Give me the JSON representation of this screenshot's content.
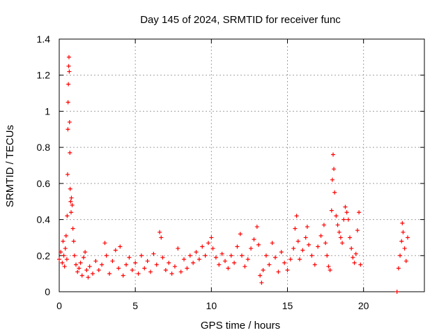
{
  "chart_data": {
    "type": "scatter",
    "title": "Day 145 of 2024, SRMTID for receiver func",
    "xlabel": "GPS time / hours",
    "ylabel": "SRMTID / TECUs",
    "xlim": [
      0,
      24
    ],
    "ylim": [
      0,
      1.4
    ],
    "xticks": [
      0,
      5,
      10,
      15,
      20
    ],
    "xtick_labels": [
      "0",
      "5",
      "10",
      "15",
      "20"
    ],
    "yticks": [
      0,
      0.2,
      0.4,
      0.6,
      0.8,
      1,
      1.2,
      1.4
    ],
    "ytick_labels": [
      "0",
      "0.2",
      "0.4",
      "0.6",
      "0.8",
      "1",
      "1.2",
      "1.4"
    ],
    "grid": true,
    "marker": "+",
    "color": "#ff0000",
    "series": [
      {
        "name": "SRMTID",
        "points": [
          [
            0.0,
            0.18
          ],
          [
            0.1,
            0.22
          ],
          [
            0.2,
            0.16
          ],
          [
            0.25,
            0.28
          ],
          [
            0.3,
            0.2
          ],
          [
            0.35,
            0.14
          ],
          [
            0.4,
            0.24
          ],
          [
            0.45,
            0.31
          ],
          [
            0.5,
            0.18
          ],
          [
            0.52,
            0.42
          ],
          [
            0.55,
            0.65
          ],
          [
            0.57,
            0.9
          ],
          [
            0.58,
            1.05
          ],
          [
            0.6,
            1.15
          ],
          [
            0.62,
            1.25
          ],
          [
            0.64,
            1.3
          ],
          [
            0.66,
            1.22
          ],
          [
            0.68,
            0.94
          ],
          [
            0.7,
            0.77
          ],
          [
            0.72,
            0.57
          ],
          [
            0.75,
            0.5
          ],
          [
            0.78,
            0.44
          ],
          [
            0.8,
            0.52
          ],
          [
            0.85,
            0.48
          ],
          [
            0.9,
            0.35
          ],
          [
            0.95,
            0.28
          ],
          [
            1.0,
            0.2
          ],
          [
            1.1,
            0.15
          ],
          [
            1.2,
            0.11
          ],
          [
            1.3,
            0.13
          ],
          [
            1.4,
            0.16
          ],
          [
            1.5,
            0.09
          ],
          [
            1.6,
            0.19
          ],
          [
            1.7,
            0.22
          ],
          [
            1.8,
            0.12
          ],
          [
            1.9,
            0.08
          ],
          [
            2.0,
            0.14
          ],
          [
            2.2,
            0.1
          ],
          [
            2.4,
            0.17
          ],
          [
            2.6,
            0.12
          ],
          [
            2.8,
            0.15
          ],
          [
            3.0,
            0.27
          ],
          [
            3.1,
            0.2
          ],
          [
            3.3,
            0.1
          ],
          [
            3.5,
            0.17
          ],
          [
            3.7,
            0.23
          ],
          [
            3.9,
            0.13
          ],
          [
            4.0,
            0.25
          ],
          [
            4.2,
            0.09
          ],
          [
            4.4,
            0.15
          ],
          [
            4.6,
            0.19
          ],
          [
            4.8,
            0.12
          ],
          [
            5.0,
            0.16
          ],
          [
            5.2,
            0.1
          ],
          [
            5.4,
            0.2
          ],
          [
            5.6,
            0.13
          ],
          [
            5.8,
            0.17
          ],
          [
            6.0,
            0.11
          ],
          [
            6.2,
            0.21
          ],
          [
            6.4,
            0.15
          ],
          [
            6.6,
            0.33
          ],
          [
            6.7,
            0.3
          ],
          [
            6.8,
            0.19
          ],
          [
            7.0,
            0.12
          ],
          [
            7.2,
            0.16
          ],
          [
            7.4,
            0.1
          ],
          [
            7.6,
            0.14
          ],
          [
            7.8,
            0.24
          ],
          [
            8.0,
            0.11
          ],
          [
            8.2,
            0.18
          ],
          [
            8.4,
            0.13
          ],
          [
            8.6,
            0.2
          ],
          [
            8.8,
            0.16
          ],
          [
            9.0,
            0.22
          ],
          [
            9.2,
            0.18
          ],
          [
            9.4,
            0.25
          ],
          [
            9.6,
            0.2
          ],
          [
            9.8,
            0.27
          ],
          [
            10.0,
            0.3
          ],
          [
            10.1,
            0.24
          ],
          [
            10.3,
            0.19
          ],
          [
            10.5,
            0.15
          ],
          [
            10.7,
            0.21
          ],
          [
            10.9,
            0.17
          ],
          [
            11.1,
            0.13
          ],
          [
            11.3,
            0.2
          ],
          [
            11.5,
            0.16
          ],
          [
            11.7,
            0.25
          ],
          [
            11.9,
            0.32
          ],
          [
            12.0,
            0.2
          ],
          [
            12.2,
            0.14
          ],
          [
            12.4,
            0.18
          ],
          [
            12.6,
            0.24
          ],
          [
            12.8,
            0.29
          ],
          [
            13.0,
            0.36
          ],
          [
            13.1,
            0.26
          ],
          [
            13.2,
            0.09
          ],
          [
            13.3,
            0.05
          ],
          [
            13.4,
            0.12
          ],
          [
            13.6,
            0.2
          ],
          [
            13.8,
            0.15
          ],
          [
            14.0,
            0.27
          ],
          [
            14.2,
            0.19
          ],
          [
            14.4,
            0.11
          ],
          [
            14.6,
            0.22
          ],
          [
            14.8,
            0.16
          ],
          [
            15.0,
            0.12
          ],
          [
            15.2,
            0.18
          ],
          [
            15.4,
            0.24
          ],
          [
            15.5,
            0.35
          ],
          [
            15.6,
            0.42
          ],
          [
            15.7,
            0.28
          ],
          [
            15.8,
            0.18
          ],
          [
            16.0,
            0.23
          ],
          [
            16.2,
            0.3
          ],
          [
            16.3,
            0.36
          ],
          [
            16.4,
            0.26
          ],
          [
            16.6,
            0.2
          ],
          [
            16.8,
            0.15
          ],
          [
            17.0,
            0.25
          ],
          [
            17.2,
            0.31
          ],
          [
            17.4,
            0.37
          ],
          [
            17.5,
            0.27
          ],
          [
            17.6,
            0.2
          ],
          [
            17.7,
            0.14
          ],
          [
            17.8,
            0.12
          ],
          [
            17.9,
            0.45
          ],
          [
            17.95,
            0.62
          ],
          [
            18.0,
            0.76
          ],
          [
            18.05,
            0.68
          ],
          [
            18.1,
            0.55
          ],
          [
            18.2,
            0.42
          ],
          [
            18.3,
            0.37
          ],
          [
            18.4,
            0.33
          ],
          [
            18.5,
            0.3
          ],
          [
            18.6,
            0.27
          ],
          [
            18.7,
            0.4
          ],
          [
            18.8,
            0.47
          ],
          [
            18.9,
            0.44
          ],
          [
            19.0,
            0.4
          ],
          [
            19.1,
            0.3
          ],
          [
            19.2,
            0.24
          ],
          [
            19.3,
            0.19
          ],
          [
            19.4,
            0.16
          ],
          [
            19.5,
            0.21
          ],
          [
            19.6,
            0.34
          ],
          [
            19.7,
            0.44
          ],
          [
            19.8,
            0.15
          ],
          [
            22.2,
            0.0
          ],
          [
            22.3,
            0.13
          ],
          [
            22.4,
            0.2
          ],
          [
            22.5,
            0.28
          ],
          [
            22.55,
            0.38
          ],
          [
            22.6,
            0.33
          ],
          [
            22.7,
            0.24
          ],
          [
            22.8,
            0.17
          ],
          [
            22.9,
            0.3
          ]
        ]
      }
    ]
  }
}
